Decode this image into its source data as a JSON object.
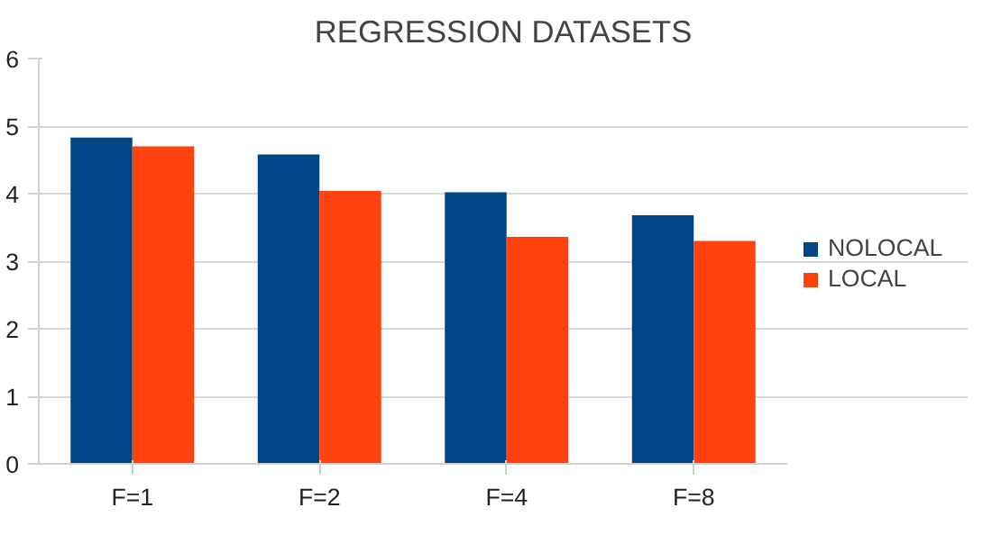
{
  "chart_data": {
    "type": "bar",
    "title": "REGRESSION DATASETS",
    "categories": [
      "F=1",
      "F=2",
      "F=4",
      "F=8"
    ],
    "series": [
      {
        "name": "NOLOCAL",
        "color": "#004586",
        "values": [
          4.83,
          4.58,
          4.02,
          3.68
        ]
      },
      {
        "name": "LOCAL",
        "color": "#ff420e",
        "values": [
          4.7,
          4.04,
          3.36,
          3.3
        ]
      }
    ],
    "ylim": [
      0,
      6
    ],
    "yticks": [
      0,
      1,
      2,
      3,
      4,
      5,
      6
    ],
    "grid": "y",
    "legend": "right"
  }
}
